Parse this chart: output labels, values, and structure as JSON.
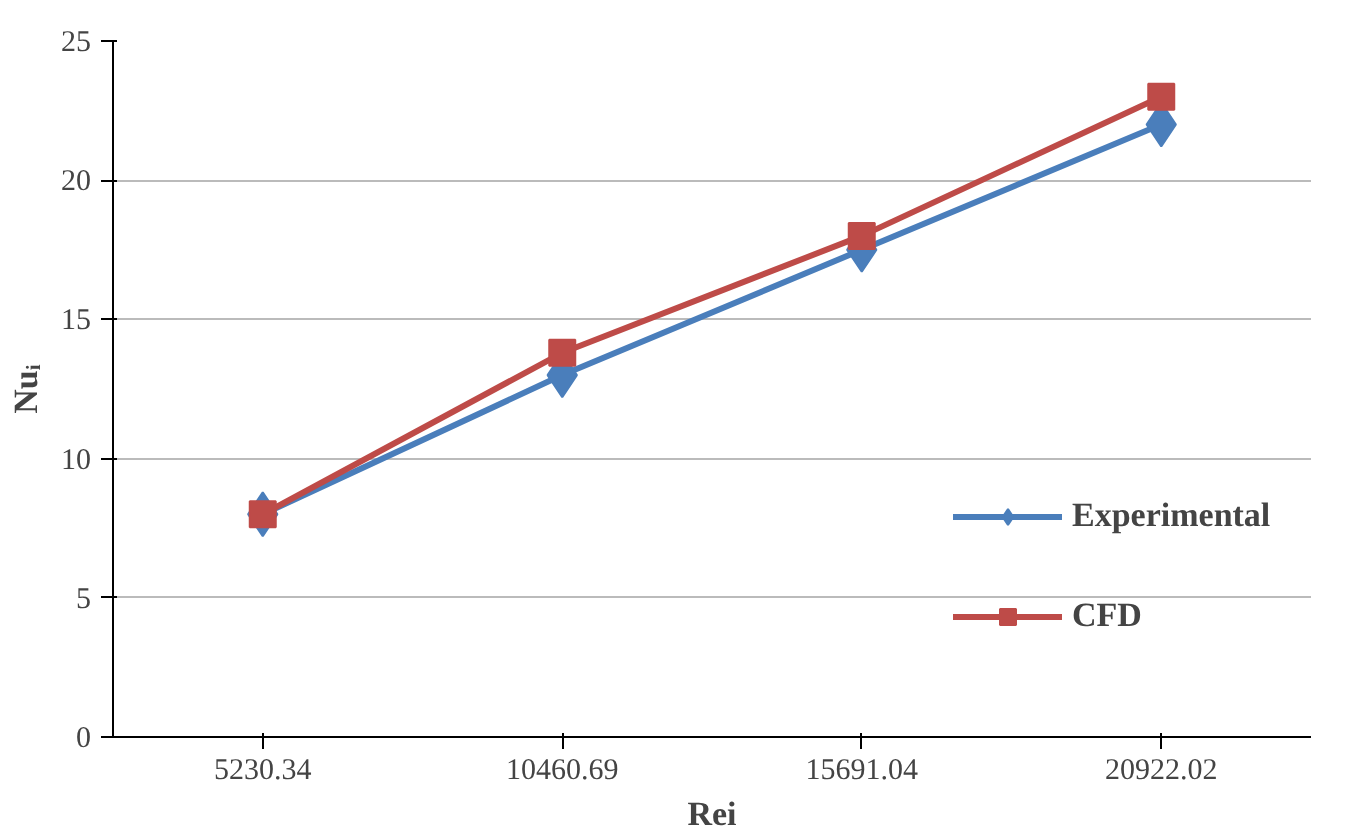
{
  "chart_data": {
    "type": "line",
    "xlabel": "Rei",
    "ylabel": "Nuᵢ",
    "categories": [
      "5230.34",
      "10460.69",
      "15691.04",
      "20922.02"
    ],
    "ylim": [
      0,
      25
    ],
    "yticks": [
      0,
      5,
      10,
      15,
      20,
      25
    ],
    "grid": "y",
    "legend": "right",
    "line_style": "solid",
    "series": [
      {
        "name": "Experimental",
        "color": "#4a7ebb",
        "marker": "diamond",
        "values": [
          8,
          13,
          17.5,
          22
        ]
      },
      {
        "name": "CFD",
        "color": "#be4b48",
        "marker": "square",
        "values": [
          8,
          13.8,
          18,
          23
        ]
      }
    ]
  }
}
